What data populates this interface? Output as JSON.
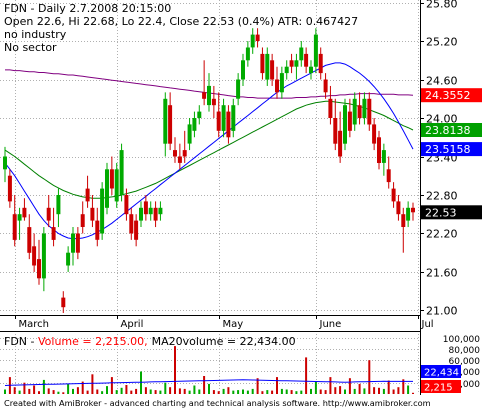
{
  "header": {
    "line1": "FDN - Daily 2.7.2008 20:15:00",
    "line2": "Open 22.6, Hi 22.68, Lo 22.4, Close 22.53 (0.4%) ATR: 0.467427",
    "line3": "no industry",
    "line4": "No sector"
  },
  "volume_header": {
    "prefix": "FDN - ",
    "volume_text": "Volume = 2,215.00,",
    "ma_text": "MA20volume = 22,434.00"
  },
  "footer": "Created with AmiBroker - advanced charting and technical analysis software. http://www.amibroker.com",
  "colors": {
    "background": "#ffffff",
    "grid": "#b0b0b0",
    "up": "#00aa00",
    "down": "#cc0000",
    "ma200": "#800080",
    "ma50": "#008000",
    "ma20": "#0000ff",
    "last_close_bg": "#000000",
    "ma200_label_bg": "#ff0000",
    "ma50_label_bg": "#00a000",
    "ma20_label_bg": "#0000ff",
    "volume_color": "#ff0000",
    "vol_ma_color": "#0000ff"
  },
  "chart_data": {
    "type": "candlestick",
    "y_ticks": [
      21.0,
      21.6,
      22.2,
      22.8,
      23.4,
      24.0,
      24.6,
      25.2,
      25.8
    ],
    "y_tick_labels": [
      "21.00",
      "21.60",
      "22.20",
      "22.80",
      "23.40",
      "24.00",
      "24.60",
      "25.20",
      "25.80"
    ],
    "ylim": [
      20.96,
      25.84
    ],
    "x_labels": [
      {
        "label": "March",
        "index": 2
      },
      {
        "label": "April",
        "index": 23
      },
      {
        "label": "May",
        "index": 44
      },
      {
        "label": "June",
        "index": 64
      },
      {
        "label": "Jul",
        "index": 85
      }
    ],
    "candles": [
      {
        "o": 23.2,
        "h": 23.55,
        "l": 23.0,
        "c": 23.4
      },
      {
        "o": 23.1,
        "h": 23.2,
        "l": 22.6,
        "c": 22.7
      },
      {
        "o": 22.5,
        "h": 22.8,
        "l": 22.0,
        "c": 22.1
      },
      {
        "o": 22.4,
        "h": 22.6,
        "l": 22.1,
        "c": 22.5
      },
      {
        "o": 22.6,
        "h": 22.75,
        "l": 22.4,
        "c": 22.45
      },
      {
        "o": 22.3,
        "h": 22.5,
        "l": 21.8,
        "c": 21.9
      },
      {
        "o": 22.0,
        "h": 22.2,
        "l": 21.6,
        "c": 21.7
      },
      {
        "o": 21.8,
        "h": 22.1,
        "l": 21.4,
        "c": 21.5
      },
      {
        "o": 21.5,
        "h": 22.3,
        "l": 21.3,
        "c": 22.2
      },
      {
        "o": 22.6,
        "h": 22.8,
        "l": 22.3,
        "c": 22.4
      },
      {
        "o": 22.3,
        "h": 22.6,
        "l": 22.0,
        "c": 22.1
      },
      {
        "o": 22.5,
        "h": 22.9,
        "l": 22.3,
        "c": 22.8
      },
      {
        "o": 21.2,
        "h": 21.3,
        "l": 20.96,
        "c": 21.05
      },
      {
        "o": 21.7,
        "h": 22.0,
        "l": 21.6,
        "c": 21.9
      },
      {
        "o": 21.9,
        "h": 22.3,
        "l": 21.7,
        "c": 22.2
      },
      {
        "o": 22.2,
        "h": 22.3,
        "l": 21.8,
        "c": 21.9
      },
      {
        "o": 22.5,
        "h": 22.7,
        "l": 22.2,
        "c": 22.3
      },
      {
        "o": 22.9,
        "h": 23.1,
        "l": 22.6,
        "c": 22.7
      },
      {
        "o": 22.6,
        "h": 22.8,
        "l": 22.3,
        "c": 22.4
      },
      {
        "o": 22.4,
        "h": 22.6,
        "l": 22.0,
        "c": 22.1
      },
      {
        "o": 22.2,
        "h": 23.0,
        "l": 22.1,
        "c": 22.9
      },
      {
        "o": 22.6,
        "h": 23.3,
        "l": 22.5,
        "c": 23.2
      },
      {
        "o": 23.2,
        "h": 23.4,
        "l": 22.8,
        "c": 22.9
      },
      {
        "o": 22.7,
        "h": 23.3,
        "l": 22.6,
        "c": 23.2
      },
      {
        "o": 22.8,
        "h": 23.6,
        "l": 22.7,
        "c": 23.5
      },
      {
        "o": 22.8,
        "h": 22.9,
        "l": 22.4,
        "c": 22.5
      },
      {
        "o": 22.5,
        "h": 22.6,
        "l": 22.1,
        "c": 22.2
      },
      {
        "o": 22.4,
        "h": 22.5,
        "l": 22.0,
        "c": 22.1
      },
      {
        "o": 22.4,
        "h": 22.7,
        "l": 22.3,
        "c": 22.6
      },
      {
        "o": 22.7,
        "h": 22.8,
        "l": 22.4,
        "c": 22.5
      },
      {
        "o": 22.5,
        "h": 22.7,
        "l": 22.4,
        "c": 22.6
      },
      {
        "o": 22.6,
        "h": 22.7,
        "l": 22.3,
        "c": 22.4
      },
      {
        "o": 22.5,
        "h": 22.7,
        "l": 22.4,
        "c": 22.6
      },
      {
        "o": 23.6,
        "h": 24.4,
        "l": 23.4,
        "c": 24.3
      },
      {
        "o": 24.2,
        "h": 24.4,
        "l": 23.5,
        "c": 23.6
      },
      {
        "o": 23.5,
        "h": 23.7,
        "l": 23.3,
        "c": 23.4
      },
      {
        "o": 23.4,
        "h": 23.6,
        "l": 23.2,
        "c": 23.3
      },
      {
        "o": 23.5,
        "h": 23.8,
        "l": 23.3,
        "c": 23.4
      },
      {
        "o": 23.6,
        "h": 24.0,
        "l": 23.5,
        "c": 23.9
      },
      {
        "o": 23.8,
        "h": 24.1,
        "l": 23.7,
        "c": 24.0
      },
      {
        "o": 24.0,
        "h": 24.2,
        "l": 23.9,
        "c": 24.1
      },
      {
        "o": 24.4,
        "h": 24.9,
        "l": 24.2,
        "c": 24.3
      },
      {
        "o": 24.2,
        "h": 24.7,
        "l": 24.1,
        "c": 24.5
      },
      {
        "o": 24.3,
        "h": 24.5,
        "l": 24.0,
        "c": 24.2
      },
      {
        "o": 24.1,
        "h": 24.4,
        "l": 23.7,
        "c": 23.8
      },
      {
        "o": 23.8,
        "h": 24.3,
        "l": 23.7,
        "c": 24.2
      },
      {
        "o": 24.1,
        "h": 24.2,
        "l": 23.6,
        "c": 23.7
      },
      {
        "o": 23.8,
        "h": 24.3,
        "l": 23.7,
        "c": 24.2
      },
      {
        "o": 24.3,
        "h": 24.7,
        "l": 24.2,
        "c": 24.6
      },
      {
        "o": 24.6,
        "h": 25.0,
        "l": 24.5,
        "c": 24.9
      },
      {
        "o": 24.9,
        "h": 25.2,
        "l": 24.8,
        "c": 25.1
      },
      {
        "o": 25.1,
        "h": 25.4,
        "l": 25.0,
        "c": 25.3
      },
      {
        "o": 25.3,
        "h": 25.4,
        "l": 25.1,
        "c": 25.2
      },
      {
        "o": 25.0,
        "h": 25.1,
        "l": 24.6,
        "c": 24.7
      },
      {
        "o": 24.6,
        "h": 25.1,
        "l": 24.5,
        "c": 25.0
      },
      {
        "o": 24.9,
        "h": 25.0,
        "l": 24.5,
        "c": 24.6
      },
      {
        "o": 24.6,
        "h": 24.8,
        "l": 24.3,
        "c": 24.4
      },
      {
        "o": 24.4,
        "h": 24.8,
        "l": 24.3,
        "c": 24.7
      },
      {
        "o": 24.7,
        "h": 24.9,
        "l": 24.6,
        "c": 24.8
      },
      {
        "o": 24.9,
        "h": 25.0,
        "l": 24.7,
        "c": 24.8
      },
      {
        "o": 24.8,
        "h": 25.0,
        "l": 24.6,
        "c": 24.9
      },
      {
        "o": 24.9,
        "h": 25.2,
        "l": 24.8,
        "c": 25.1
      },
      {
        "o": 25.0,
        "h": 25.1,
        "l": 24.7,
        "c": 24.8
      },
      {
        "o": 24.7,
        "h": 24.9,
        "l": 24.6,
        "c": 24.8
      },
      {
        "o": 24.8,
        "h": 25.4,
        "l": 24.7,
        "c": 25.3
      },
      {
        "o": 25.0,
        "h": 25.1,
        "l": 24.6,
        "c": 24.7
      },
      {
        "o": 24.6,
        "h": 24.7,
        "l": 24.3,
        "c": 24.4
      },
      {
        "o": 24.3,
        "h": 24.5,
        "l": 23.9,
        "c": 24.0
      },
      {
        "o": 24.0,
        "h": 24.3,
        "l": 23.5,
        "c": 23.6
      },
      {
        "o": 23.8,
        "h": 24.1,
        "l": 23.3,
        "c": 23.4
      },
      {
        "o": 23.6,
        "h": 24.3,
        "l": 23.5,
        "c": 24.2
      },
      {
        "o": 24.1,
        "h": 24.3,
        "l": 23.7,
        "c": 23.8
      },
      {
        "o": 23.9,
        "h": 24.4,
        "l": 23.8,
        "c": 24.3
      },
      {
        "o": 24.2,
        "h": 24.4,
        "l": 23.9,
        "c": 24.0
      },
      {
        "o": 24.0,
        "h": 24.4,
        "l": 23.9,
        "c": 24.3
      },
      {
        "o": 24.3,
        "h": 24.4,
        "l": 23.8,
        "c": 23.9
      },
      {
        "o": 23.9,
        "h": 24.0,
        "l": 23.5,
        "c": 23.6
      },
      {
        "o": 23.7,
        "h": 23.8,
        "l": 23.2,
        "c": 23.3
      },
      {
        "o": 23.3,
        "h": 23.6,
        "l": 23.1,
        "c": 23.5
      },
      {
        "o": 23.2,
        "h": 23.4,
        "l": 22.9,
        "c": 23.0
      },
      {
        "o": 22.9,
        "h": 23.0,
        "l": 22.6,
        "c": 22.7
      },
      {
        "o": 22.7,
        "h": 22.8,
        "l": 22.4,
        "c": 22.5
      },
      {
        "o": 22.5,
        "h": 22.6,
        "l": 21.9,
        "c": 22.3
      },
      {
        "o": 22.4,
        "h": 22.7,
        "l": 22.3,
        "c": 22.6
      },
      {
        "o": 22.6,
        "h": 22.68,
        "l": 22.4,
        "c": 22.53
      }
    ],
    "ma200": [
      24.75,
      24.75,
      24.74,
      24.74,
      24.73,
      24.72,
      24.72,
      24.71,
      24.71,
      24.7,
      24.69,
      24.69,
      24.68,
      24.67,
      24.67,
      24.66,
      24.65,
      24.64,
      24.63,
      24.62,
      24.61,
      24.6,
      24.59,
      24.58,
      24.57,
      24.56,
      24.55,
      24.54,
      24.53,
      24.52,
      24.51,
      24.5,
      24.49,
      24.48,
      24.47,
      24.46,
      24.45,
      24.44,
      24.43,
      24.42,
      24.41,
      24.4,
      24.39,
      24.38,
      24.37,
      24.36,
      24.35,
      24.34,
      24.33,
      24.33,
      24.32,
      24.32,
      24.31,
      24.31,
      24.31,
      24.31,
      24.31,
      24.31,
      24.31,
      24.31,
      24.32,
      24.32,
      24.32,
      24.33,
      24.33,
      24.34,
      24.34,
      24.35,
      24.35,
      24.36,
      24.36,
      24.37,
      24.37,
      24.38,
      24.38,
      24.38,
      24.38,
      24.37,
      24.37,
      24.37,
      24.37,
      24.36,
      24.36,
      24.36,
      24.3552
    ],
    "ma50": [
      23.5,
      23.45,
      23.4,
      23.34,
      23.28,
      23.22,
      23.16,
      23.1,
      23.05,
      23.0,
      22.95,
      22.91,
      22.87,
      22.84,
      22.81,
      22.79,
      22.77,
      22.76,
      22.75,
      22.75,
      22.75,
      22.76,
      22.77,
      22.78,
      22.8,
      22.82,
      22.84,
      22.86,
      22.89,
      22.92,
      22.95,
      22.98,
      23.02,
      23.06,
      23.1,
      23.14,
      23.18,
      23.22,
      23.26,
      23.3,
      23.34,
      23.38,
      23.42,
      23.46,
      23.5,
      23.54,
      23.58,
      23.62,
      23.66,
      23.7,
      23.74,
      23.78,
      23.82,
      23.86,
      23.9,
      23.94,
      23.98,
      24.02,
      24.06,
      24.1,
      24.14,
      24.17,
      24.2,
      24.22,
      24.24,
      24.25,
      24.26,
      24.26,
      24.25,
      24.24,
      24.23,
      24.22,
      24.2,
      24.18,
      24.16,
      24.13,
      24.1,
      24.07,
      24.04,
      24.0,
      23.96,
      23.92,
      23.88,
      23.85,
      23.8138
    ],
    "ma20": [
      23.3,
      23.2,
      23.1,
      22.98,
      22.86,
      22.74,
      22.62,
      22.5,
      22.4,
      22.32,
      22.26,
      22.2,
      22.16,
      22.13,
      22.12,
      22.12,
      22.13,
      22.15,
      22.18,
      22.22,
      22.26,
      22.31,
      22.36,
      22.42,
      22.48,
      22.54,
      22.6,
      22.66,
      22.72,
      22.78,
      22.84,
      22.9,
      22.96,
      23.02,
      23.08,
      23.14,
      23.2,
      23.26,
      23.32,
      23.38,
      23.44,
      23.5,
      23.56,
      23.62,
      23.68,
      23.74,
      23.8,
      23.86,
      23.92,
      23.98,
      24.04,
      24.1,
      24.16,
      24.22,
      24.28,
      24.34,
      24.4,
      24.45,
      24.5,
      24.54,
      24.58,
      24.62,
      24.66,
      24.7,
      24.74,
      24.78,
      24.82,
      24.84,
      24.86,
      24.86,
      24.84,
      24.8,
      24.75,
      24.7,
      24.64,
      24.57,
      24.49,
      24.4,
      24.3,
      24.19,
      24.07,
      23.94,
      23.8,
      23.66,
      23.5158
    ],
    "price_labels": [
      {
        "label": "24.3552",
        "value": 24.3552,
        "color_key": "ma200_label_bg"
      },
      {
        "label": "23.8138",
        "value": 23.8138,
        "color_key": "ma50_label_bg"
      },
      {
        "label": "23.5158",
        "value": 23.5158,
        "color_key": "ma20_label_bg"
      },
      {
        "label": "22.53",
        "value": 22.53,
        "color_key": "last_close_bg"
      }
    ],
    "volume": {
      "y_ticks": [
        20000,
        40000,
        60000,
        80000,
        100000
      ],
      "y_tick_labels": [
        "20,000",
        "40,000",
        "60,000",
        "80,000",
        "100,000"
      ],
      "ylim": [
        0,
        110000
      ],
      "values": [
        8000,
        30000,
        12000,
        6000,
        20000,
        9000,
        15000,
        5000,
        25000,
        10000,
        7000,
        4000,
        3000,
        18000,
        9000,
        12000,
        22000,
        6000,
        35000,
        8000,
        5000,
        14000,
        30000,
        7000,
        11000,
        16000,
        6000,
        9000,
        40000,
        12000,
        8000,
        7000,
        6000,
        20000,
        12000,
        85000,
        10000,
        9000,
        6000,
        15000,
        8000,
        32000,
        18000,
        7000,
        5000,
        9000,
        12000,
        6000,
        7000,
        8000,
        6000,
        9000,
        28000,
        5000,
        7000,
        6000,
        30000,
        9000,
        8000,
        7000,
        5000,
        6000,
        65000,
        9000,
        22000,
        8000,
        7000,
        30000,
        12000,
        14000,
        8000,
        28000,
        9000,
        18000,
        10000,
        60000,
        12000,
        11000,
        9000,
        24000,
        8000,
        12000,
        26000,
        15000,
        2215
      ],
      "ma20": [
        15000,
        15500,
        15800,
        16000,
        16200,
        16400,
        16600,
        16800,
        17000,
        17200,
        17400,
        17600,
        17800,
        18000,
        18200,
        18400,
        18600,
        18800,
        19000,
        19200,
        19400,
        19600,
        19800,
        20000,
        20200,
        20400,
        20600,
        20800,
        21000,
        21200,
        21400,
        21600,
        21800,
        22000,
        22200,
        22400,
        22600,
        22800,
        23000,
        23200,
        23400,
        23600,
        23800,
        24000,
        24200,
        24400,
        24600,
        24800,
        25000,
        25200,
        25000,
        24800,
        24600,
        24400,
        24200,
        24000,
        23800,
        23600,
        23400,
        23200,
        23000,
        22800,
        22600,
        22400,
        22200,
        22000,
        21800,
        21600,
        21400,
        21200,
        21000,
        21200,
        21400,
        21600,
        21800,
        22000,
        22200,
        22400,
        22600,
        22434,
        22434,
        22434,
        22434,
        22434,
        22434
      ],
      "labels": [
        {
          "label": "22,434",
          "value": 22434,
          "color_key": "vol_ma_color"
        },
        {
          "label": "2,215",
          "value": 2215,
          "color_key": "volume_color"
        }
      ]
    }
  }
}
